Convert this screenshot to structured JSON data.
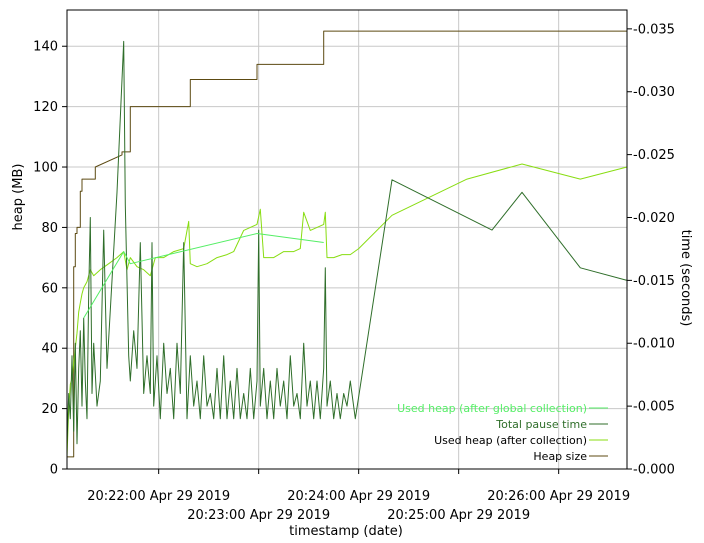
{
  "chart_data": {
    "type": "line",
    "title": "",
    "xlabel": "timestamp (date)",
    "ylabel_left": "heap (MB)",
    "ylabel_right": "time (seconds)",
    "x_unit": "seconds after 20:21:05 Apr 29 2019",
    "xlim": [
      0,
      336
    ],
    "ylim_left": [
      0,
      152
    ],
    "ylim_right": [
      0,
      0.0365
    ],
    "grid": true,
    "legend_position": "lower-right",
    "x_ticks": [
      {
        "t": 55,
        "label": "20:22:00 Apr 29 2019"
      },
      {
        "t": 115,
        "label": "20:23:00 Apr 29 2019"
      },
      {
        "t": 175,
        "label": "20:24:00 Apr 29 2019"
      },
      {
        "t": 235,
        "label": "20:25:00 Apr 29 2019"
      },
      {
        "t": 295,
        "label": "20:26:00 Apr 29 2019"
      }
    ],
    "y_ticks_left": [
      0,
      20,
      40,
      60,
      80,
      100,
      120,
      140
    ],
    "y_ticks_right": [
      {
        "v": 0.0,
        "label": "0.000"
      },
      {
        "v": 0.005,
        "label": "0.005"
      },
      {
        "v": 0.01,
        "label": "0.010"
      },
      {
        "v": 0.015,
        "label": "0.015"
      },
      {
        "v": 0.02,
        "label": "0.020"
      },
      {
        "v": 0.025,
        "label": "0.025"
      },
      {
        "v": 0.03,
        "label": "0.030"
      },
      {
        "v": 0.035,
        "label": "0.035"
      }
    ],
    "series": [
      {
        "name": "Heap size",
        "axis": "left",
        "color": "#5c4a12",
        "x": [
          0,
          4,
          4,
          5,
          5,
          6,
          6,
          8,
          8,
          9,
          9,
          17,
          17,
          33,
          33,
          38,
          38,
          74,
          74,
          114,
          114,
          154,
          154,
          336
        ],
        "y": [
          4,
          4,
          67,
          67,
          78,
          78,
          80,
          80,
          92,
          92,
          96,
          96,
          100,
          104,
          105,
          105,
          120,
          120,
          129,
          129,
          134,
          134,
          145,
          145
        ]
      },
      {
        "name": "Used heap (after collection)",
        "axis": "left",
        "color": "#88dd11",
        "x": [
          0,
          1,
          2,
          3,
          4,
          5,
          6,
          7,
          8,
          9,
          10,
          12,
          14,
          16,
          20,
          25,
          30,
          34,
          36,
          38,
          42,
          46,
          50,
          53,
          58,
          64,
          70,
          73,
          74,
          78,
          84,
          90,
          96,
          100,
          106,
          110,
          114,
          116,
          118,
          124,
          130,
          136,
          140,
          142,
          146,
          150,
          154,
          155,
          156,
          160,
          165,
          170,
          175,
          195,
          240,
          273,
          308,
          336
        ],
        "y": [
          4,
          20,
          28,
          30,
          35,
          40,
          45,
          52,
          55,
          58,
          60,
          62,
          66,
          64,
          66,
          68,
          70,
          72,
          66,
          70,
          67,
          66,
          64,
          70,
          70,
          72,
          73,
          82,
          68,
          67,
          68,
          70,
          71,
          72,
          79,
          80,
          81,
          86,
          70,
          70,
          72,
          72,
          73,
          85,
          79,
          80,
          81,
          85,
          70,
          70,
          71,
          71,
          73,
          84,
          96,
          101,
          96,
          100
        ]
      },
      {
        "name": "Total pause time",
        "axis": "right",
        "color": "#2f6e2a",
        "x": [
          0,
          1,
          2,
          3,
          4,
          5,
          6,
          7,
          8,
          9,
          10,
          11,
          12,
          13,
          14,
          15,
          16,
          18,
          20,
          22,
          24,
          30,
          34,
          35,
          37,
          38,
          40,
          42,
          44,
          46,
          48,
          50,
          51,
          52,
          54,
          56,
          58,
          60,
          62,
          64,
          66,
          68,
          70,
          72,
          74,
          76,
          78,
          80,
          82,
          84,
          86,
          88,
          90,
          92,
          94,
          96,
          98,
          100,
          102,
          104,
          106,
          108,
          110,
          112,
          114,
          115,
          116,
          118,
          120,
          122,
          124,
          126,
          128,
          130,
          132,
          134,
          136,
          138,
          140,
          142,
          144,
          146,
          148,
          150,
          152,
          154,
          155,
          156,
          158,
          160,
          162,
          164,
          166,
          168,
          170,
          173,
          195,
          255,
          273,
          308,
          336
        ],
        "y": [
          0.002,
          0.006,
          0.004,
          0.009,
          0.003,
          0.01,
          0.002,
          0.008,
          0.011,
          0.005,
          0.012,
          0.007,
          0.004,
          0.014,
          0.02,
          0.006,
          0.01,
          0.005,
          0.007,
          0.019,
          0.008,
          0.022,
          0.034,
          0.021,
          0.009,
          0.007,
          0.011,
          0.008,
          0.018,
          0.006,
          0.009,
          0.006,
          0.018,
          0.005,
          0.009,
          0.004,
          0.01,
          0.006,
          0.008,
          0.004,
          0.01,
          0.006,
          0.018,
          0.004,
          0.009,
          0.005,
          0.007,
          0.004,
          0.009,
          0.005,
          0.006,
          0.004,
          0.008,
          0.004,
          0.009,
          0.004,
          0.007,
          0.004,
          0.008,
          0.004,
          0.006,
          0.004,
          0.008,
          0.004,
          0.007,
          0.019,
          0.005,
          0.008,
          0.004,
          0.007,
          0.004,
          0.008,
          0.005,
          0.007,
          0.004,
          0.009,
          0.005,
          0.006,
          0.004,
          0.01,
          0.005,
          0.007,
          0.004,
          0.007,
          0.004,
          0.008,
          0.016,
          0.005,
          0.007,
          0.004,
          0.006,
          0.004,
          0.006,
          0.005,
          0.007,
          0.004,
          0.023,
          0.019,
          0.022,
          0.016,
          0.015
        ]
      },
      {
        "name": "Used heap (after global collection)",
        "axis": "left",
        "color": "#55ee66",
        "x": [
          10,
          34,
          38,
          114,
          154
        ],
        "y": [
          50,
          72,
          68,
          78,
          75
        ]
      }
    ]
  }
}
